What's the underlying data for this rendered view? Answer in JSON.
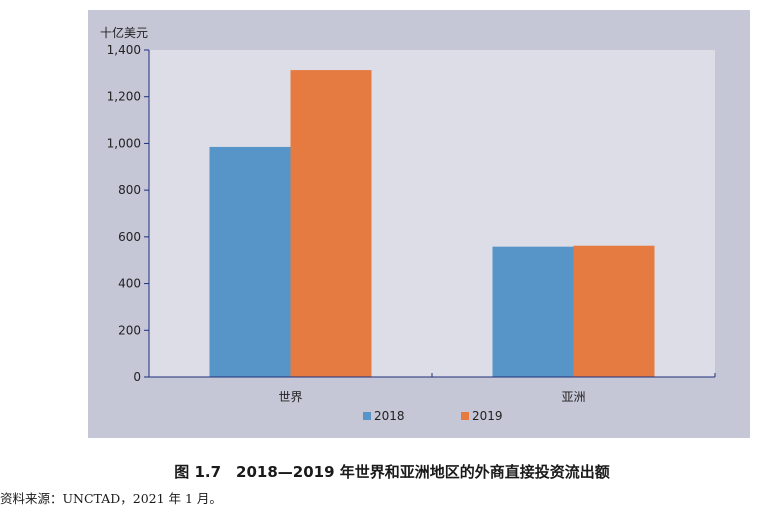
{
  "caption": "图 1.7　2018—2019 年世界和亚洲地区的外商直接投资流出额",
  "source": "资料来源：UNCTAD，2021 年 1 月。",
  "chart_data": {
    "type": "bar",
    "unit_label": "十亿美元",
    "categories": [
      "世界",
      "亚洲"
    ],
    "series": [
      {
        "name": "2018",
        "values": [
          985,
          558
        ],
        "color": "#5795c9"
      },
      {
        "name": "2019",
        "values": [
          1314,
          562
        ],
        "color": "#e57b41"
      }
    ],
    "ylim": [
      0,
      1400
    ],
    "yticks": [
      0,
      200,
      400,
      600,
      800,
      1000,
      1200,
      1400
    ],
    "ytick_labels": [
      "0",
      "200",
      "400",
      "600",
      "800",
      "1,000",
      "1,200",
      "1,400"
    ],
    "grid": false,
    "legend_position": "bottom",
    "plot_background": "#dcdde6",
    "panel_background": "#c5c6d6",
    "axis_color": "#1f2f7a"
  }
}
